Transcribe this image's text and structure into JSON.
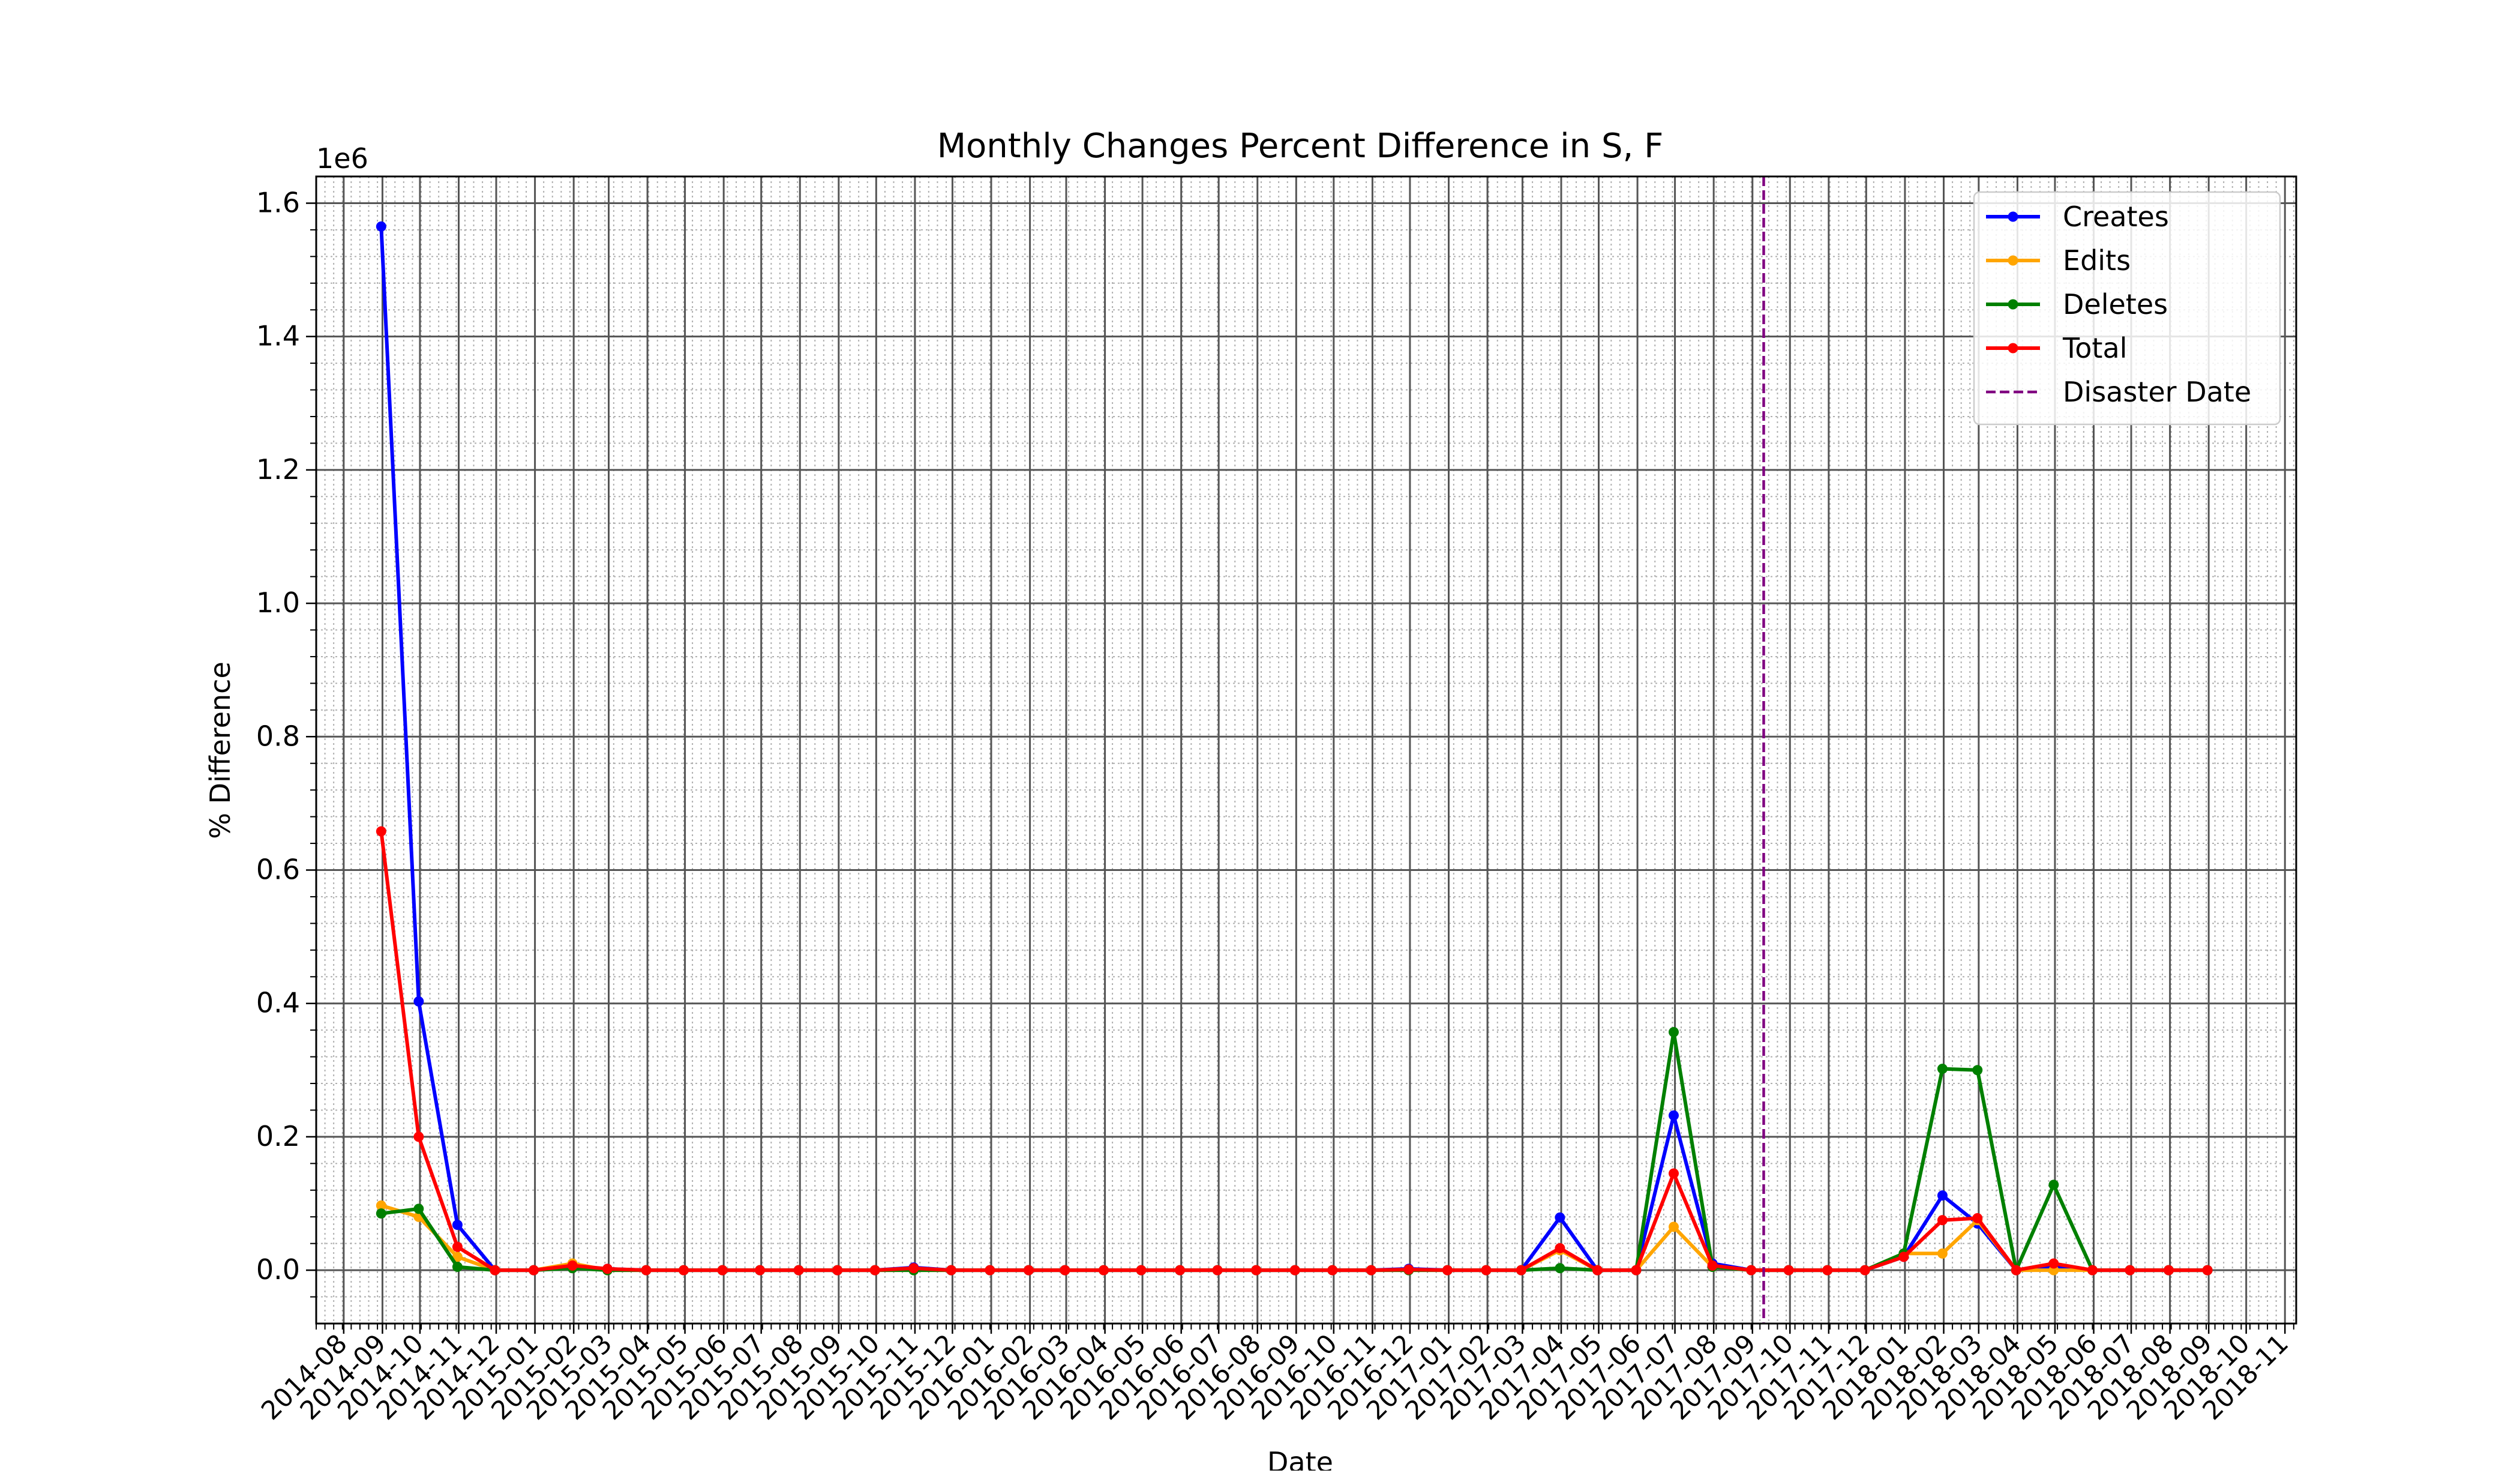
{
  "chart_data": {
    "type": "line",
    "title": "Monthly Changes Percent Difference in S, F",
    "xlabel": "Date",
    "ylabel": "% Difference",
    "y_offset_label": "1e6",
    "y_multiplier": 1000000,
    "ylim": [
      -0.08,
      1.64
    ],
    "y_ticks": [
      0.0,
      0.2,
      0.4,
      0.6,
      0.8,
      1.0,
      1.2,
      1.4,
      1.6
    ],
    "y_tick_labels": [
      "0.0",
      "0.2",
      "0.4",
      "0.6",
      "0.8",
      "1.0",
      "1.2",
      "1.4",
      "1.6"
    ],
    "xlim": [
      "2014-07-10",
      "2018-11-10"
    ],
    "x_tick_labels": [
      "2014-08",
      "2014-09",
      "2014-10",
      "2014-11",
      "2014-12",
      "2015-01",
      "2015-02",
      "2015-03",
      "2015-04",
      "2015-05",
      "2015-06",
      "2015-07",
      "2015-08",
      "2015-09",
      "2015-10",
      "2015-11",
      "2015-12",
      "2016-01",
      "2016-02",
      "2016-03",
      "2016-04",
      "2016-05",
      "2016-06",
      "2016-07",
      "2016-08",
      "2016-09",
      "2016-10",
      "2016-11",
      "2016-12",
      "2017-01",
      "2017-02",
      "2017-03",
      "2017-04",
      "2017-05",
      "2017-06",
      "2017-07",
      "2017-08",
      "2017-09",
      "2017-10",
      "2017-11",
      "2017-12",
      "2018-01",
      "2018-02",
      "2018-03",
      "2018-04",
      "2018-05",
      "2018-06",
      "2018-07",
      "2018-08",
      "2018-09",
      "2018-10",
      "2018-11"
    ],
    "grid": true,
    "legend_position": "top-right",
    "x": [
      "2014-08-31",
      "2014-09-30",
      "2014-10-31",
      "2014-11-30",
      "2014-12-31",
      "2015-01-31",
      "2015-02-28",
      "2015-03-31",
      "2015-04-30",
      "2015-05-31",
      "2015-06-30",
      "2015-07-31",
      "2015-08-31",
      "2015-09-30",
      "2015-10-31",
      "2015-11-30",
      "2015-12-31",
      "2016-01-31",
      "2016-02-29",
      "2016-03-31",
      "2016-04-30",
      "2016-05-31",
      "2016-06-30",
      "2016-07-31",
      "2016-08-31",
      "2016-09-30",
      "2016-10-31",
      "2016-11-30",
      "2016-12-31",
      "2017-01-31",
      "2017-02-28",
      "2017-03-31",
      "2017-04-30",
      "2017-05-31",
      "2017-06-30",
      "2017-07-31",
      "2017-08-31",
      "2017-09-30",
      "2017-10-31",
      "2017-11-30",
      "2017-12-31",
      "2018-01-31",
      "2018-02-28",
      "2018-03-31",
      "2018-04-30",
      "2018-05-31",
      "2018-06-30",
      "2018-07-31",
      "2018-08-31"
    ],
    "series": [
      {
        "name": "Creates",
        "color": "#0000ff",
        "values": [
          1.565,
          0.403,
          0.068,
          0,
          0,
          0.005,
          0.002,
          0,
          0,
          0,
          0,
          0,
          0,
          0,
          0.004,
          0,
          0,
          0,
          0,
          0,
          0,
          0,
          0,
          0,
          0,
          0,
          0,
          0.002,
          0,
          0,
          0,
          0.079,
          0,
          0,
          0.232,
          0.01,
          0,
          0,
          0,
          0,
          0.02,
          0.112,
          0.07,
          0,
          0.005,
          0,
          0,
          0,
          0
        ]
      },
      {
        "name": "Edits",
        "color": "#ffa500",
        "values": [
          0.097,
          0.08,
          0.02,
          0,
          0,
          0.01,
          0,
          0,
          0,
          0,
          0,
          0,
          0,
          0,
          0,
          0,
          0,
          0,
          0,
          0,
          0,
          0,
          0,
          0,
          0,
          0,
          0,
          0,
          0,
          0,
          0,
          0.03,
          0,
          0,
          0.065,
          0.005,
          0,
          0,
          0,
          0,
          0.025,
          0.025,
          0.075,
          0,
          0,
          0,
          0,
          0,
          0
        ]
      },
      {
        "name": "Deletes",
        "color": "#008000",
        "values": [
          0.085,
          0.092,
          0.005,
          0,
          0,
          0.003,
          0,
          0,
          0,
          0,
          0,
          0,
          0,
          0,
          0,
          0,
          0,
          0,
          0,
          0,
          0,
          0,
          0,
          0,
          0,
          0,
          0,
          0,
          0,
          0,
          0,
          0.003,
          0,
          0,
          0.357,
          0.005,
          0,
          0,
          0,
          0,
          0.025,
          0.302,
          0.3,
          0,
          0.128,
          0,
          0,
          0,
          0
        ]
      },
      {
        "name": "Total",
        "color": "#ff0000",
        "values": [
          0.658,
          0.2,
          0.035,
          0,
          0,
          0.007,
          0.002,
          0,
          0,
          0,
          0,
          0,
          0,
          0,
          0.003,
          0,
          0,
          0,
          0,
          0,
          0,
          0,
          0,
          0,
          0,
          0,
          0,
          0.001,
          0,
          0,
          0,
          0.033,
          0,
          0,
          0.145,
          0.007,
          0,
          0,
          0,
          0,
          0.02,
          0.075,
          0.078,
          0,
          0.01,
          0,
          0,
          0,
          0
        ]
      }
    ],
    "vlines": [
      {
        "name": "Disaster Date",
        "x": "2017-09-10",
        "color": "#800080",
        "style": "dashed"
      }
    ]
  }
}
